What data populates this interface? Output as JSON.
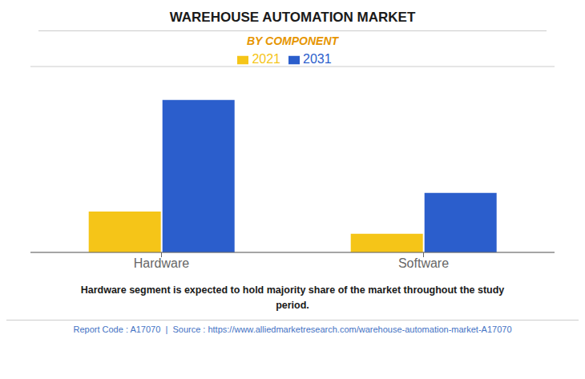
{
  "chart_data": {
    "type": "bar",
    "title": "WAREHOUSE AUTOMATION MARKET",
    "subtitle": "BY COMPONENT",
    "categories": [
      "Hardware",
      "Software"
    ],
    "series": [
      {
        "name": "2021",
        "color": "#F5C518",
        "values": [
          22,
          10
        ]
      },
      {
        "name": "2031",
        "color": "#2B5ECC",
        "values": [
          82,
          32
        ]
      }
    ],
    "ylim": [
      0,
      100
    ],
    "yticks": [
      0,
      10,
      20,
      30,
      40,
      50,
      60,
      70,
      80,
      90,
      100
    ],
    "grid": true,
    "legend": "top",
    "tick_labels": "x",
    "annotations": [
      "Hardware segment is expected to hold majority share of the market throughout the study\nperiod.",
      "Report Code : A17070  |  Source : https://www.alliedmarketresearch.com/warehouse-automation-market-A17070"
    ]
  }
}
